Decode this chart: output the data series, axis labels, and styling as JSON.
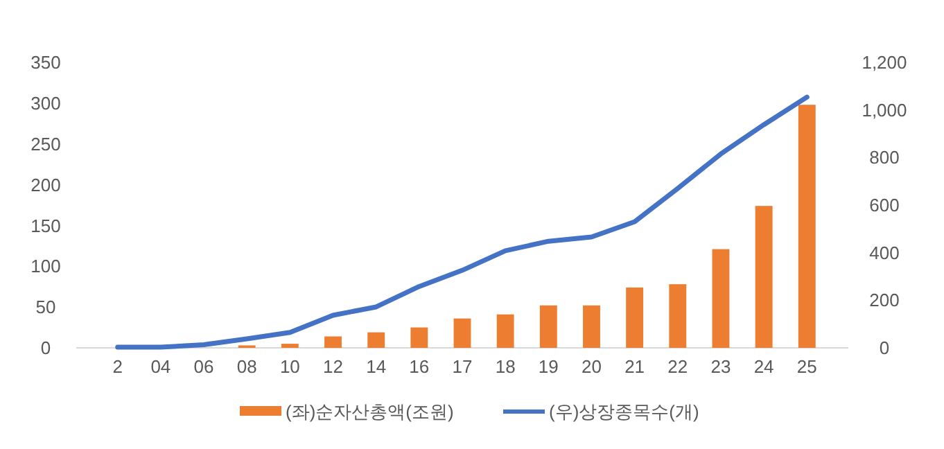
{
  "chart_data": {
    "type": "bar",
    "categories": [
      "2",
      "04",
      "06",
      "08",
      "10",
      "12",
      "14",
      "16",
      "17",
      "18",
      "19",
      "20",
      "21",
      "22",
      "23",
      "24",
      "25"
    ],
    "series": [
      {
        "name": "(좌)순자산총액(조원)",
        "color": "#ed7d31",
        "values": [
          0,
          0,
          0,
          3,
          5,
          14,
          19,
          25,
          36,
          41,
          52,
          52,
          74,
          78,
          121,
          174,
          298
        ]
      },
      {
        "name": "(우)상장종목수(개)",
        "type": "line",
        "axis": "y2",
        "color": "#4472c4",
        "values": [
          3,
          3,
          13,
          38,
          65,
          137,
          172,
          258,
          326,
          408,
          448,
          466,
          530,
          670,
          815,
          938,
          1054
        ]
      }
    ],
    "ylim": [
      0,
      350
    ],
    "yticks": [
      0,
      50,
      100,
      150,
      200,
      250,
      300,
      350
    ],
    "y2lim": [
      0,
      1200
    ],
    "y2ticks": [
      0,
      200,
      400,
      600,
      800,
      {
        "value": 1000,
        "label": "1,000"
      },
      {
        "value": 1200,
        "label": "1,200"
      }
    ],
    "legend": "bottom",
    "grid": false,
    "marker": "none"
  }
}
